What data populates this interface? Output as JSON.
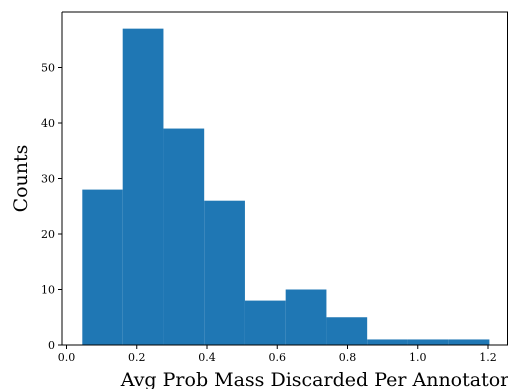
{
  "chart_data": {
    "type": "bar",
    "title": "",
    "xlabel": "Avg Prob Mass Discarded Per Annotator",
    "ylabel": "Counts",
    "xlim": [
      0.0,
      1.25
    ],
    "ylim": [
      0,
      60
    ],
    "x_ticks": [
      0.0,
      0.2,
      0.4,
      0.6,
      0.8,
      1.0,
      1.2
    ],
    "x_tick_labels": [
      "0.0",
      "0.2",
      "0.4",
      "0.6",
      "0.8",
      "1.0",
      "1.2"
    ],
    "y_ticks": [
      0,
      10,
      20,
      30,
      40,
      50
    ],
    "y_tick_labels": [
      "0",
      "10",
      "20",
      "30",
      "40",
      "50"
    ],
    "bin_edges": [
      0.045,
      0.16,
      0.276,
      0.392,
      0.508,
      0.624,
      0.74,
      0.856,
      0.972,
      1.088,
      1.204
    ],
    "values": [
      28,
      57,
      39,
      26,
      8,
      10,
      5,
      1,
      1,
      1
    ],
    "bar_color": "#1f77b4",
    "grid": false,
    "legend": "none"
  }
}
